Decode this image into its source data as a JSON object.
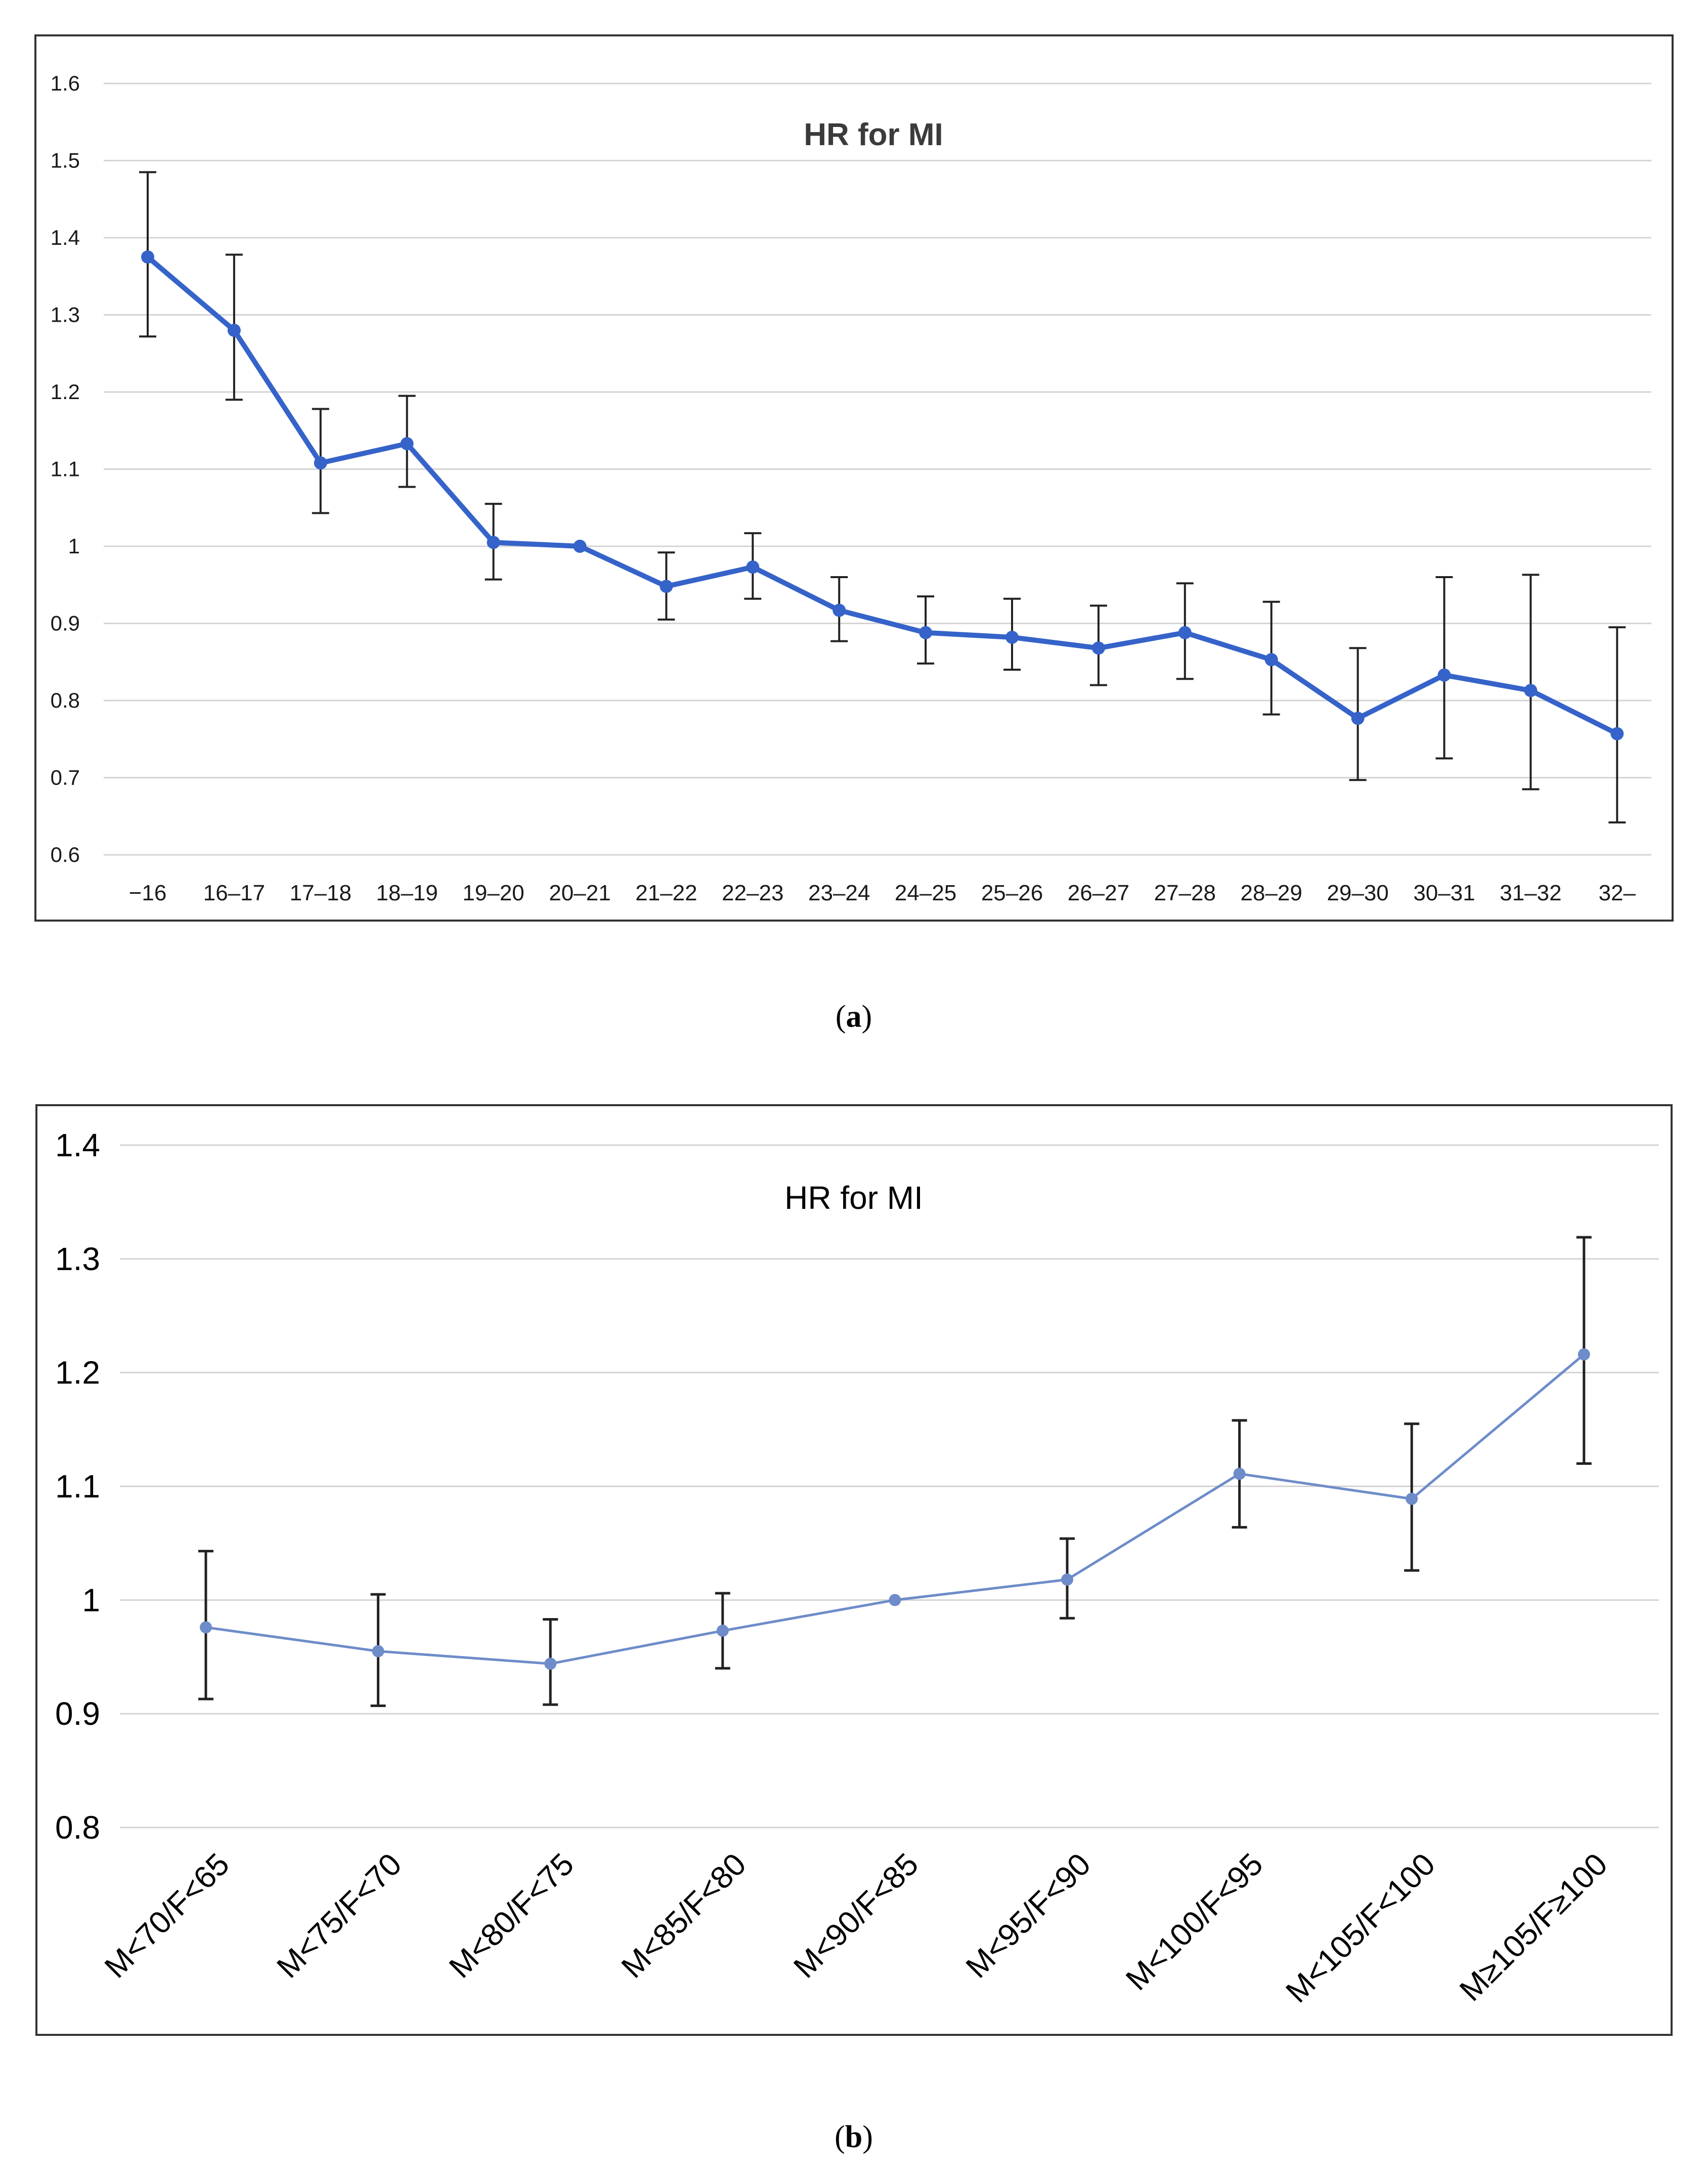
{
  "chart_data": [
    {
      "type": "line",
      "panel": "a",
      "title": "HR for MI",
      "xlabel": "",
      "ylabel": "",
      "ylim": [
        0.6,
        1.6
      ],
      "yticks": [
        "0.6",
        "0.7",
        "0.8",
        "0.9",
        "1",
        "1.1",
        "1.2",
        "1.3",
        "1.4",
        "1.5",
        "1.6"
      ],
      "categories": [
        "−16",
        "16–17",
        "17–18",
        "18–19",
        "19–20",
        "20–21",
        "21–22",
        "22–23",
        "23–24",
        "24–25",
        "25–26",
        "26–27",
        "27–28",
        "28–29",
        "29–30",
        "30–31",
        "31–32",
        "32–"
      ],
      "series": [
        {
          "name": "HR for MI",
          "color": "#3563c9",
          "values": [
            1.375,
            1.28,
            1.108,
            1.133,
            1.005,
            1.0,
            0.948,
            0.973,
            0.917,
            0.888,
            0.882,
            0.868,
            0.888,
            0.853,
            0.777,
            0.833,
            0.813,
            0.757
          ],
          "lower": [
            1.272,
            1.19,
            1.043,
            1.077,
            0.957,
            1.0,
            0.905,
            0.932,
            0.877,
            0.848,
            0.84,
            0.82,
            0.828,
            0.782,
            0.697,
            0.725,
            0.685,
            0.642
          ],
          "upper": [
            1.485,
            1.378,
            1.178,
            1.195,
            1.055,
            1.0,
            0.992,
            1.017,
            0.96,
            0.935,
            0.932,
            0.923,
            0.952,
            0.928,
            0.868,
            0.96,
            0.963,
            0.895
          ]
        }
      ],
      "grid": true,
      "caption_label": "a"
    },
    {
      "type": "line",
      "panel": "b",
      "title": "HR for MI",
      "xlabel": "",
      "ylabel": "",
      "ylim": [
        0.8,
        1.4
      ],
      "yticks": [
        "0.8",
        "0.9",
        "1",
        "1.1",
        "1.2",
        "1.3",
        "1.4"
      ],
      "categories": [
        "M<70/F<65",
        "M<75/F<70",
        "M<80/F<75",
        "M<85/F<80",
        "M<90/F<85",
        "M<95/F<90",
        "M<100/F<95",
        "M<105/F<100",
        "M≥105/F≥100"
      ],
      "series": [
        {
          "name": "HR for MI",
          "color": "#6d8cc9",
          "values": [
            0.976,
            0.955,
            0.944,
            0.973,
            1.0,
            1.018,
            1.111,
            1.089,
            1.216
          ],
          "lower": [
            0.913,
            0.907,
            0.908,
            0.94,
            1.0,
            0.984,
            1.064,
            1.026,
            1.12
          ],
          "upper": [
            1.043,
            1.005,
            0.983,
            1.006,
            1.0,
            1.054,
            1.158,
            1.155,
            1.319
          ]
        }
      ],
      "grid": true,
      "caption_label": "b"
    }
  ]
}
